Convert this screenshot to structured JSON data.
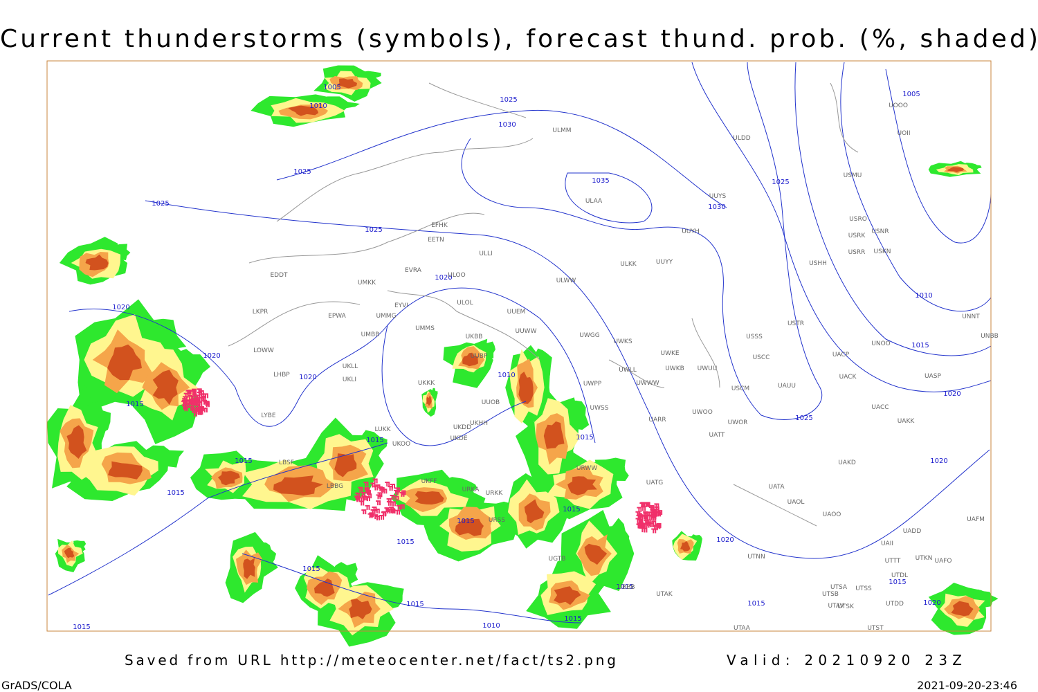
{
  "header": {
    "title": "Current thunderstorms (symbols), forecast thund. prob. (%, shaded)"
  },
  "footer": {
    "source": "Saved from URL http://meteocenter.net/fact/ts2.png",
    "valid": "Valid: 20210920 23Z",
    "credit": "GrADS/COLA",
    "timestamp": "2021-09-20-23:46"
  },
  "isobar_labels": [
    1005,
    1010,
    1025,
    1030,
    1025,
    1025,
    1035,
    1030,
    1025,
    1025,
    1005,
    1010,
    1015,
    1020,
    1025,
    1020,
    1020,
    1015,
    1020,
    1020,
    1020,
    1015,
    1015,
    1015,
    1015,
    1015,
    1010,
    1015,
    1015,
    1015,
    1015,
    1015,
    1010,
    1015,
    1015,
    1015,
    1020,
    1020,
    1015
  ],
  "stations": [
    "ULMM",
    "ULDD",
    "UUYS",
    "ULAA",
    "UUYH",
    "ULKK",
    "UUYY",
    "EFHK",
    "EETN",
    "ULLI",
    "EVRA",
    "ULOO",
    "EDDT",
    "UMKK",
    "ULOL",
    "EYVI",
    "UUEM",
    "LKPR",
    "EPWA",
    "UMMG",
    "UMMS",
    "UUWW",
    "UWGG",
    "UWKS",
    "LOWW",
    "UMBB",
    "UKLL",
    "UKLI",
    "UKBB",
    "LHBP",
    "UKKK",
    "UWPP",
    "UWWW",
    "UWKE",
    "UWKB",
    "UWLL",
    "UWUU",
    "USSS",
    "USCC",
    "USCM",
    "UAUU",
    "USTR",
    "UACP",
    "UACK",
    "UASP",
    "UNOO",
    "UNNT",
    "UNBB",
    "LYBE",
    "UKFF",
    "UKOO",
    "UKDE",
    "UKDD",
    "UKHH",
    "UUOB",
    "UWOO",
    "UWOR",
    "UATT",
    "UARR",
    "UACC",
    "UAKK",
    "UAKD",
    "USHH",
    "USMU",
    "USRO",
    "USRK",
    "USRR",
    "USNR",
    "USKN",
    "UOOO",
    "UOII",
    "UATG",
    "UATA",
    "UAOL",
    "UAOO",
    "UADD",
    "UAFM",
    "UAII",
    "UTTT",
    "UTKN",
    "UAFO",
    "UTDL",
    "UTNN",
    "UTAK",
    "UTSA",
    "UTSS",
    "UTSB",
    "UTAV",
    "UTSK",
    "UTDD",
    "UTAA",
    "UTST",
    "LBSF",
    "LBBG",
    "URKA",
    "URKK",
    "URSS",
    "UGTB",
    "URWW",
    "UBBB",
    "LUKK",
    "UUBP",
    "ULWW",
    "UWSS"
  ]
}
